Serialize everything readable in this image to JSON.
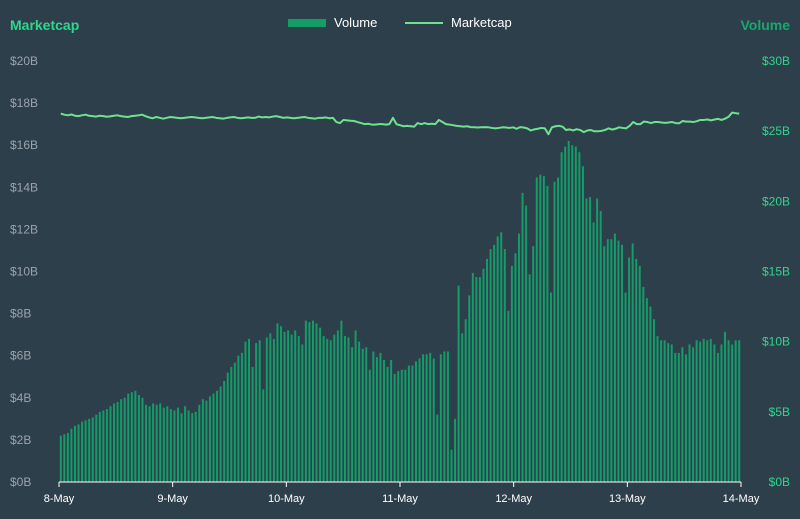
{
  "chart_data": {
    "type": "bar+line",
    "title": "",
    "legend": {
      "placement": "top-center",
      "items": [
        "Volume",
        "Marketcap"
      ]
    },
    "left_axis": {
      "title": "Marketcap",
      "range": [
        0,
        20
      ],
      "ticks": [
        "$0B",
        "$2B",
        "$4B",
        "$6B",
        "$8B",
        "$10B",
        "$12B",
        "$14B",
        "$16B",
        "$18B",
        "$20B"
      ]
    },
    "right_axis": {
      "title": "Volume",
      "range": [
        0,
        30
      ],
      "ticks": [
        "$0B",
        "$5B",
        "$10B",
        "$15B",
        "$20B",
        "$25B",
        "$30B"
      ]
    },
    "x_axis": {
      "range": [
        0,
        144
      ],
      "tick_labels": [
        "8-May",
        "9-May",
        "10-May",
        "11-May",
        "12-May",
        "13-May",
        "14-May"
      ],
      "tick_positions": [
        0,
        24,
        48,
        72,
        96,
        120,
        144
      ]
    },
    "colors": {
      "background": "#2e3f4c",
      "volume": "#139e68",
      "marketcap": "#6fe28e",
      "left_axis_title": "#2fd68c",
      "right_axis_title": "#17a86f",
      "left_ticks": "#9aa3ab",
      "right_ticks": "#2fd68c",
      "x_ticks": "#ffffff",
      "axis_line": "#ffffff"
    },
    "series": [
      {
        "name": "Volume",
        "kind": "bar",
        "axis": "right",
        "unit": "$B",
        "x_step": 1,
        "values": [
          3.3,
          3.4,
          3.5,
          3.8,
          4.0,
          4.1,
          4.3,
          4.4,
          4.5,
          4.6,
          4.8,
          5.0,
          5.1,
          5.2,
          5.4,
          5.6,
          5.7,
          5.9,
          6.0,
          6.3,
          6.4,
          6.5,
          6.2,
          6.0,
          5.5,
          5.4,
          5.6,
          5.5,
          5.6,
          5.3,
          5.4,
          5.2,
          5.1,
          5.3,
          4.9,
          5.4,
          5.1,
          4.9,
          5.0,
          5.5,
          5.9,
          5.8,
          6.1,
          6.3,
          6.5,
          6.8,
          7.2,
          7.8,
          8.2,
          8.5,
          9.0,
          9.2,
          10.0,
          10.2,
          8.2,
          9.9,
          10.1,
          6.6,
          10.3,
          10.6,
          10.2,
          11.3,
          11.1,
          10.7,
          10.8,
          10.5,
          10.8,
          10.4,
          9.8,
          11.5,
          11.4,
          11.5,
          11.3,
          11.0,
          10.4,
          10.2,
          10.1,
          10.5,
          10.8,
          11.5,
          10.4,
          10.3,
          9.6,
          10.8,
          10.0,
          9.5,
          9.6,
          8.0,
          9.3,
          8.9,
          9.2,
          8.7,
          8.2,
          8.7,
          7.7,
          7.9,
          8.0,
          8.0,
          8.3,
          8.3,
          8.6,
          8.8,
          9.1,
          9.1,
          9.2,
          8.8,
          4.8,
          9.1,
          9.3,
          9.3,
          2.3,
          4.5,
          14.0,
          10.6,
          11.6,
          13.3,
          14.9,
          14.6,
          14.6,
          15.2,
          15.9,
          16.6,
          16.9,
          17.5,
          17.8,
          16.6,
          12.2,
          15.4,
          16.3,
          17.7,
          20.6,
          19.7,
          14.8,
          16.8,
          21.7,
          21.9,
          21.8,
          21.1,
          13.5,
          21.4,
          21.7,
          23.5,
          23.9,
          24.3,
          24.0,
          23.9,
          23.5,
          22.5,
          20.2,
          20.3,
          18.5,
          20.2,
          19.3,
          16.8,
          17.3,
          17.3,
          17.7,
          17.2,
          16.9,
          13.5,
          16.0,
          17.0,
          15.9,
          15.4,
          13.9,
          13.1,
          12.5,
          11.6,
          10.4,
          10.1,
          10.1,
          9.9,
          9.8,
          9.2,
          9.2,
          9.6,
          9.1,
          9.8,
          9.6,
          10.1,
          10.0,
          10.2,
          10.1,
          10.2,
          9.8,
          9.2,
          9.8,
          10.7,
          10.1,
          9.8,
          10.1,
          10.1
        ]
      },
      {
        "name": "Marketcap",
        "kind": "line",
        "axis": "left",
        "unit": "$B",
        "x_step": 1,
        "values": [
          17.5,
          17.45,
          17.42,
          17.46,
          17.4,
          17.38,
          17.42,
          17.45,
          17.4,
          17.38,
          17.36,
          17.4,
          17.38,
          17.35,
          17.37,
          17.4,
          17.42,
          17.38,
          17.36,
          17.34,
          17.38,
          17.4,
          17.42,
          17.45,
          17.38,
          17.32,
          17.28,
          17.34,
          17.3,
          17.26,
          17.3,
          17.34,
          17.32,
          17.3,
          17.28,
          17.3,
          17.32,
          17.34,
          17.32,
          17.3,
          17.28,
          17.3,
          17.32,
          17.34,
          17.3,
          17.28,
          17.26,
          17.3,
          17.32,
          17.34,
          17.3,
          17.28,
          17.3,
          17.32,
          17.3,
          17.3,
          17.36,
          17.32,
          17.34,
          17.32,
          17.36,
          17.38,
          17.34,
          17.3,
          17.32,
          17.3,
          17.28,
          17.3,
          17.32,
          17.34,
          17.3,
          17.28,
          17.26,
          17.3,
          17.3,
          17.32,
          17.28,
          17.3,
          17.1,
          17.05,
          17.2,
          17.18,
          17.16,
          17.15,
          17.1,
          17.05,
          17.0,
          17.02,
          16.98,
          16.98,
          17.0,
          17.0,
          16.98,
          17.0,
          17.3,
          17.0,
          16.95,
          16.9,
          16.92,
          16.9,
          16.88,
          17.05,
          17.0,
          17.05,
          17.0,
          17.02,
          17.0,
          17.2,
          17.1,
          17.0,
          16.98,
          16.95,
          16.92,
          16.9,
          16.88,
          16.9,
          16.86,
          16.85,
          16.84,
          16.85,
          16.86,
          16.85,
          16.82,
          16.8,
          16.82,
          16.85,
          16.84,
          16.82,
          16.85,
          16.78,
          16.86,
          16.84,
          16.8,
          16.7,
          16.75,
          16.78,
          16.82,
          16.8,
          16.52,
          16.85,
          16.9,
          16.92,
          16.88,
          16.72,
          16.75,
          16.7,
          16.76,
          16.72,
          16.62,
          16.7,
          16.72,
          16.66,
          16.66,
          16.68,
          16.72,
          16.8,
          16.74,
          16.78,
          16.85,
          16.82,
          16.8,
          16.92,
          17.1,
          17.0,
          17.0,
          17.12,
          17.1,
          17.05,
          17.1,
          17.1,
          17.08,
          17.06,
          17.08,
          17.1,
          17.05,
          17.04,
          17.15,
          17.12,
          17.12,
          17.1,
          17.14,
          17.2,
          17.2,
          17.22,
          17.18,
          17.22,
          17.25,
          17.2,
          17.26,
          17.35,
          17.55,
          17.52,
          17.5
        ]
      }
    ]
  }
}
